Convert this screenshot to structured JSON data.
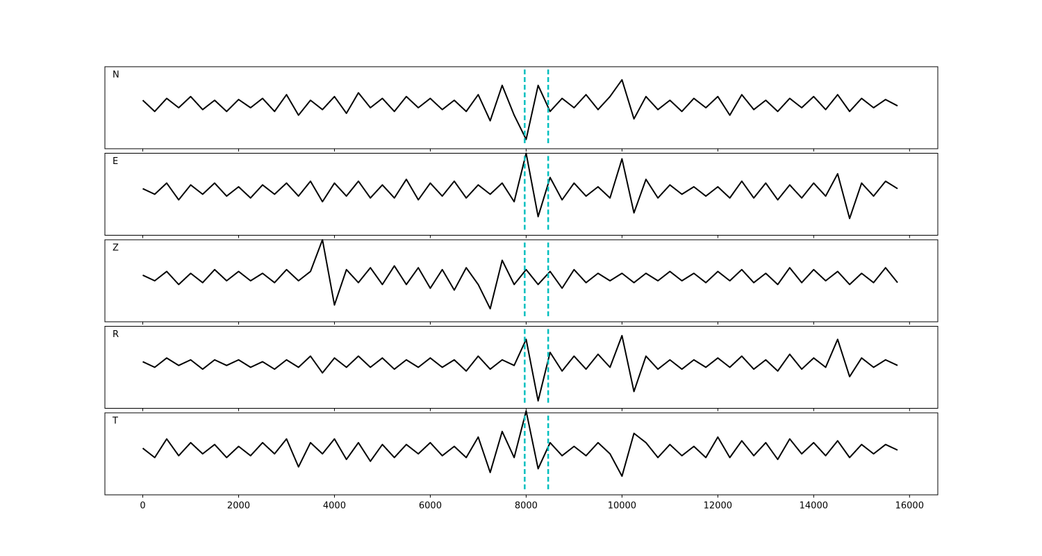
{
  "chart_data": [
    {
      "type": "line",
      "label": "N",
      "xlim": [
        -790,
        16590
      ],
      "ylim": [
        -1.2,
        1
      ],
      "vlines": [
        7970,
        8460
      ],
      "vline_color": "#00bfbf",
      "x": [
        0,
        250,
        500,
        750,
        1000,
        1250,
        1500,
        1750,
        2000,
        2250,
        2500,
        2750,
        3000,
        3250,
        3500,
        3750,
        4000,
        4250,
        4500,
        4750,
        5000,
        5250,
        5500,
        5750,
        6000,
        6250,
        6500,
        6750,
        7000,
        7250,
        7500,
        7750,
        8000,
        8250,
        8500,
        8750,
        9000,
        9250,
        9500,
        9750,
        10000,
        10250,
        10500,
        10750,
        11000,
        11250,
        11500,
        11750,
        12000,
        12250,
        12500,
        12750,
        13000,
        13250,
        13500,
        13750,
        14000,
        14250,
        14500,
        14750,
        15000,
        15250,
        15500,
        15750
      ],
      "series": [
        {
          "color": "#000000",
          "values": [
            0.1,
            -0.2,
            0.15,
            -0.1,
            0.2,
            -0.15,
            0.1,
            -0.2,
            0.12,
            -0.1,
            0.15,
            -0.2,
            0.25,
            -0.3,
            0.1,
            -0.15,
            0.2,
            -0.25,
            0.3,
            -0.1,
            0.15,
            -0.2,
            0.2,
            -0.1,
            0.15,
            -0.15,
            0.1,
            -0.2,
            0.25,
            -0.45,
            0.5,
            -0.3,
            -0.95,
            0.5,
            -0.2,
            0.15,
            -0.1,
            0.25,
            -0.15,
            0.2,
            0.65,
            -0.4,
            0.2,
            -0.15,
            0.1,
            -0.2,
            0.15,
            -0.1,
            0.2,
            -0.3,
            0.25,
            -0.15,
            0.1,
            -0.2,
            0.15,
            -0.1,
            0.2,
            -0.15,
            0.25,
            -0.2,
            0.15,
            -0.1,
            0.12,
            -0.05
          ]
        }
      ]
    },
    {
      "type": "line",
      "label": "E",
      "xlim": [
        -790,
        16590
      ],
      "ylim": [
        -1.2,
        1
      ],
      "vlines": [
        7970,
        8460
      ],
      "vline_color": "#00bfbf",
      "x": [
        0,
        250,
        500,
        750,
        1000,
        1250,
        1500,
        1750,
        2000,
        2250,
        2500,
        2750,
        3000,
        3250,
        3500,
        3750,
        4000,
        4250,
        4500,
        4750,
        5000,
        5250,
        5500,
        5750,
        6000,
        6250,
        6500,
        6750,
        7000,
        7250,
        7500,
        7750,
        8000,
        8250,
        8500,
        8750,
        9000,
        9250,
        9500,
        9750,
        10000,
        10250,
        10500,
        10750,
        11000,
        11250,
        11500,
        11750,
        12000,
        12250,
        12500,
        12750,
        13000,
        13250,
        13500,
        13750,
        14000,
        14250,
        14500,
        14750,
        15000,
        15250,
        15500,
        15750
      ],
      "series": [
        {
          "color": "#000000",
          "values": [
            0.05,
            -0.1,
            0.2,
            -0.25,
            0.15,
            -0.1,
            0.2,
            -0.15,
            0.1,
            -0.2,
            0.15,
            -0.1,
            0.2,
            -0.15,
            0.25,
            -0.3,
            0.2,
            -0.15,
            0.25,
            -0.2,
            0.15,
            -0.2,
            0.3,
            -0.25,
            0.2,
            -0.15,
            0.25,
            -0.2,
            0.15,
            -0.1,
            0.2,
            -0.3,
            1.0,
            -0.7,
            0.35,
            -0.25,
            0.2,
            -0.15,
            0.1,
            -0.2,
            0.85,
            -0.6,
            0.3,
            -0.2,
            0.15,
            -0.1,
            0.1,
            -0.15,
            0.1,
            -0.2,
            0.25,
            -0.2,
            0.2,
            -0.25,
            0.15,
            -0.2,
            0.2,
            -0.15,
            0.45,
            -0.75,
            0.2,
            -0.15,
            0.25,
            0.05
          ]
        }
      ]
    },
    {
      "type": "line",
      "label": "Z",
      "xlim": [
        -790,
        16590
      ],
      "ylim": [
        -1.2,
        1
      ],
      "vlines": [
        7970,
        8460
      ],
      "vline_color": "#00bfbf",
      "x": [
        0,
        250,
        500,
        750,
        1000,
        1250,
        1500,
        1750,
        2000,
        2250,
        2500,
        2750,
        3000,
        3250,
        3500,
        3750,
        4000,
        4250,
        4500,
        4750,
        5000,
        5250,
        5500,
        5750,
        6000,
        6250,
        6500,
        6750,
        7000,
        7250,
        7500,
        7750,
        8000,
        8250,
        8500,
        8750,
        9000,
        9250,
        9500,
        9750,
        10000,
        10250,
        10500,
        10750,
        11000,
        11250,
        11500,
        11750,
        12000,
        12250,
        12500,
        12750,
        13000,
        13250,
        13500,
        13750,
        14000,
        14250,
        14500,
        14750,
        15000,
        15250,
        15500,
        15750
      ],
      "series": [
        {
          "color": "#000000",
          "values": [
            0.05,
            -0.1,
            0.15,
            -0.2,
            0.1,
            -0.15,
            0.2,
            -0.1,
            0.15,
            -0.1,
            0.1,
            -0.15,
            0.2,
            -0.1,
            0.15,
            1.0,
            -0.75,
            0.2,
            -0.15,
            0.25,
            -0.2,
            0.3,
            -0.2,
            0.25,
            -0.3,
            0.2,
            -0.35,
            0.25,
            -0.2,
            -0.85,
            0.45,
            -0.2,
            0.2,
            -0.2,
            0.15,
            -0.3,
            0.2,
            -0.15,
            0.1,
            -0.1,
            0.1,
            -0.15,
            0.1,
            -0.1,
            0.15,
            -0.1,
            0.1,
            -0.15,
            0.15,
            -0.1,
            0.2,
            -0.15,
            0.1,
            -0.2,
            0.25,
            -0.15,
            0.2,
            -0.1,
            0.15,
            -0.2,
            0.1,
            -0.15,
            0.25,
            -0.15
          ]
        }
      ]
    },
    {
      "type": "line",
      "label": "R",
      "xlim": [
        -790,
        16590
      ],
      "ylim": [
        -1.2,
        1
      ],
      "vlines": [
        7970,
        8460
      ],
      "vline_color": "#00bfbf",
      "x": [
        0,
        250,
        500,
        750,
        1000,
        1250,
        1500,
        1750,
        2000,
        2250,
        2500,
        2750,
        3000,
        3250,
        3500,
        3750,
        4000,
        4250,
        4500,
        4750,
        5000,
        5250,
        5500,
        5750,
        6000,
        6250,
        6500,
        6750,
        7000,
        7250,
        7500,
        7750,
        8000,
        8250,
        8500,
        8750,
        9000,
        9250,
        9500,
        9750,
        10000,
        10250,
        10500,
        10750,
        11000,
        11250,
        11500,
        11750,
        12000,
        12250,
        12500,
        12750,
        13000,
        13250,
        13500,
        13750,
        14000,
        14250,
        14500,
        14750,
        15000,
        15250,
        15500,
        15750
      ],
      "series": [
        {
          "color": "#000000",
          "values": [
            0.05,
            -0.1,
            0.15,
            -0.05,
            0.1,
            -0.15,
            0.1,
            -0.05,
            0.1,
            -0.1,
            0.05,
            -0.15,
            0.1,
            -0.1,
            0.2,
            -0.25,
            0.15,
            -0.1,
            0.2,
            -0.1,
            0.15,
            -0.15,
            0.1,
            -0.1,
            0.15,
            -0.1,
            0.1,
            -0.2,
            0.2,
            -0.15,
            0.1,
            -0.05,
            0.65,
            -1.0,
            0.3,
            -0.2,
            0.2,
            -0.15,
            0.25,
            -0.1,
            0.75,
            -0.75,
            0.2,
            -0.15,
            0.1,
            -0.15,
            0.1,
            -0.1,
            0.15,
            -0.1,
            0.2,
            -0.15,
            0.1,
            -0.2,
            0.25,
            -0.15,
            0.15,
            -0.1,
            0.65,
            -0.35,
            0.15,
            -0.1,
            0.1,
            -0.05
          ]
        }
      ]
    },
    {
      "type": "line",
      "label": "T",
      "xlim": [
        -790,
        16590
      ],
      "ylim": [
        -1.2,
        1
      ],
      "vlines": [
        7970,
        8460
      ],
      "vline_color": "#00bfbf",
      "xticks": [
        0,
        2000,
        4000,
        6000,
        8000,
        10000,
        12000,
        14000,
        16000
      ],
      "x": [
        0,
        250,
        500,
        750,
        1000,
        1250,
        1500,
        1750,
        2000,
        2250,
        2500,
        2750,
        3000,
        3250,
        3500,
        3750,
        4000,
        4250,
        4500,
        4750,
        5000,
        5250,
        5500,
        5750,
        6000,
        6250,
        6500,
        6750,
        7000,
        7250,
        7500,
        7750,
        8000,
        8250,
        8500,
        8750,
        9000,
        9250,
        9500,
        9750,
        10000,
        10250,
        10500,
        10750,
        11000,
        11250,
        11500,
        11750,
        12000,
        12250,
        12500,
        12750,
        13000,
        13250,
        13500,
        13750,
        14000,
        14250,
        14500,
        14750,
        15000,
        15250,
        15500,
        15750
      ],
      "series": [
        {
          "color": "#000000",
          "values": [
            0.05,
            -0.2,
            0.3,
            -0.15,
            0.2,
            -0.1,
            0.15,
            -0.2,
            0.1,
            -0.15,
            0.2,
            -0.1,
            0.3,
            -0.45,
            0.2,
            -0.1,
            0.3,
            -0.25,
            0.2,
            -0.3,
            0.15,
            -0.2,
            0.15,
            -0.1,
            0.2,
            -0.15,
            0.1,
            -0.2,
            0.35,
            -0.6,
            0.5,
            -0.2,
            1.05,
            -0.5,
            0.2,
            -0.15,
            0.1,
            -0.15,
            0.2,
            -0.1,
            -0.7,
            0.45,
            0.2,
            -0.2,
            0.15,
            -0.15,
            0.1,
            -0.2,
            0.35,
            -0.2,
            0.25,
            -0.15,
            0.2,
            -0.25,
            0.3,
            -0.1,
            0.2,
            -0.15,
            0.25,
            -0.2,
            0.15,
            -0.1,
            0.15,
            0.0
          ]
        }
      ]
    }
  ]
}
